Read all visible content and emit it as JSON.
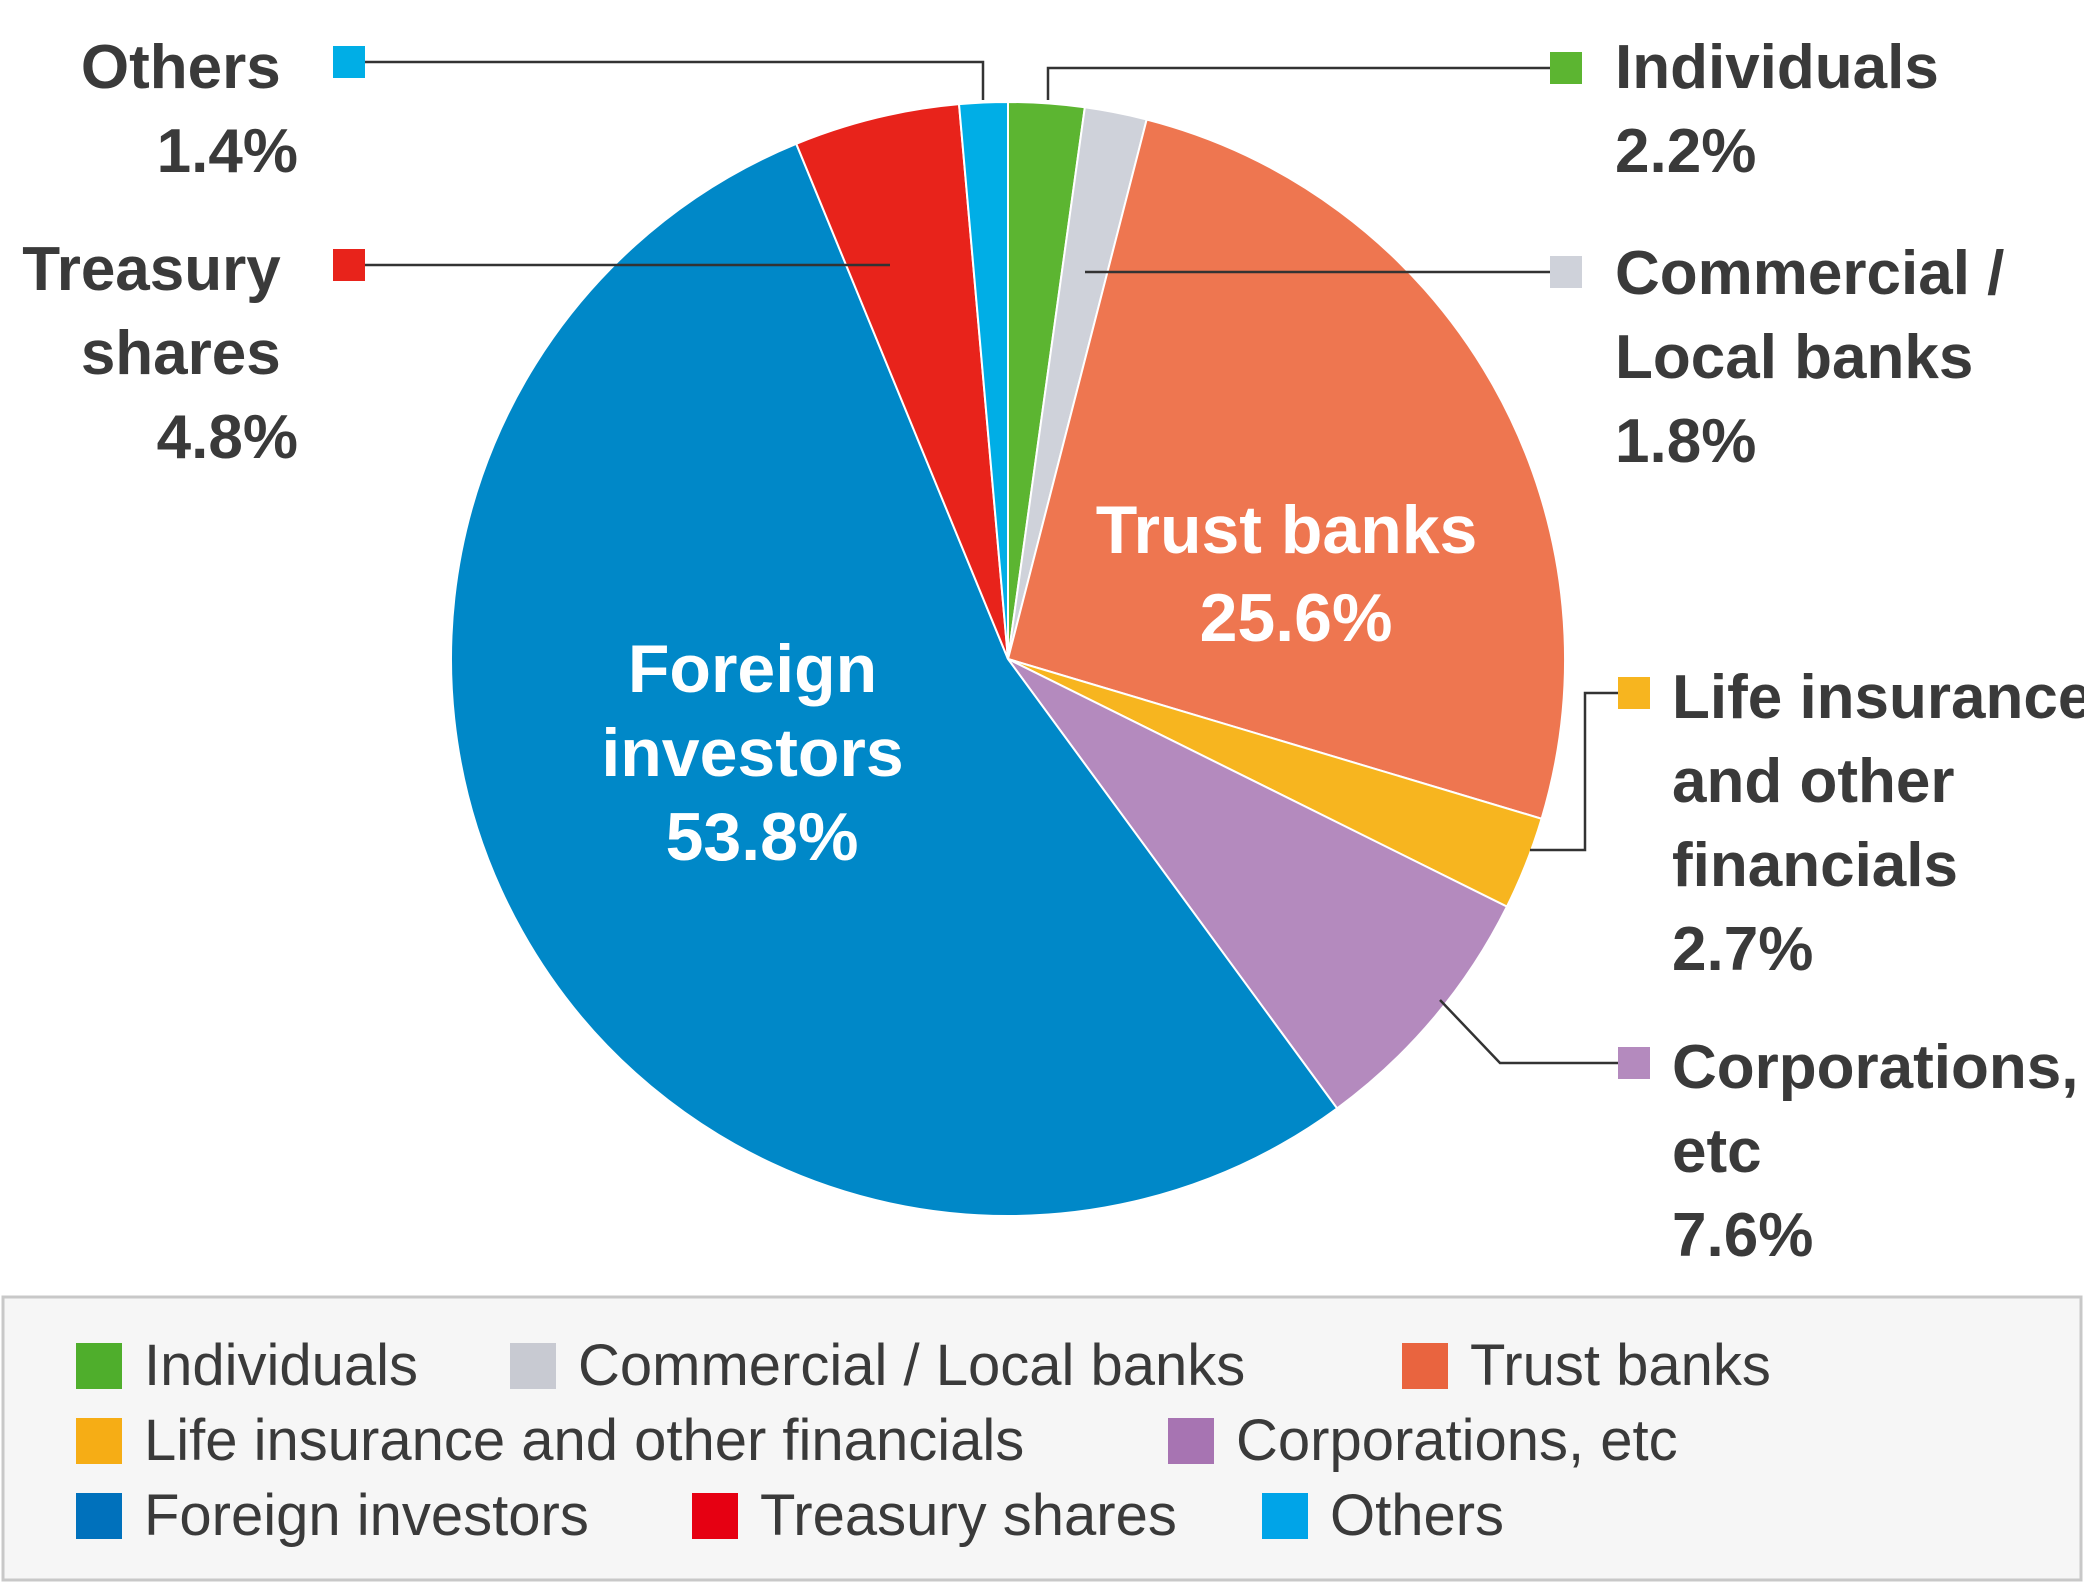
{
  "chart_data": {
    "type": "pie",
    "series": [
      {
        "slices": [
          {
            "label": "Individuals",
            "value": 2.2,
            "value_label": "2.2%",
            "color": "#5cb531"
          },
          {
            "label": "Commercial / Local banks",
            "value": 1.8,
            "value_label": "1.8%",
            "color": "#cfd2da"
          },
          {
            "label": "Trust banks",
            "value": 25.6,
            "value_label": "25.6%",
            "color": "#ee7650"
          },
          {
            "label": "Life insurance and other financials",
            "value": 2.7,
            "value_label": "2.7%",
            "color": "#f7b51f"
          },
          {
            "label": "Corporations, etc",
            "value": 7.6,
            "value_label": "7.6%",
            "color": "#b48abe"
          },
          {
            "label": "Foreign investors",
            "value": 53.8,
            "value_label": "53.8%",
            "color": "#0088c8"
          },
          {
            "label": "Treasury shares",
            "value": 4.8,
            "value_label": "4.8%",
            "color": "#e8231b"
          },
          {
            "label": "Others",
            "value": 1.4,
            "value_label": "1.4%",
            "color": "#00aee6"
          }
        ]
      }
    ],
    "start_angle": "top, clockwise",
    "legend": {
      "placement": "bottom",
      "entries": [
        {
          "label": "Individuals",
          "color": "#4fae2c"
        },
        {
          "label": "Commercial  / Local banks",
          "color": "#c8cad2"
        },
        {
          "label": "Trust banks",
          "color": "#e9643f"
        },
        {
          "label": "Life insurance and other financials",
          "color": "#f6ad15"
        },
        {
          "label": "Corporations, etc",
          "color": "#a774b2"
        },
        {
          "label": "Foreign investors",
          "color": "#0071bc"
        },
        {
          "label": "Treasury shares",
          "color": "#e60012"
        },
        {
          "label": "Others",
          "color": "#00a4e8"
        }
      ]
    }
  },
  "callouts": {
    "individuals": {
      "lines": [
        "Individuals",
        "2.2%"
      ]
    },
    "commercial": {
      "lines": [
        "Commercial /",
        "Local banks",
        "1.8%"
      ]
    },
    "life": {
      "lines": [
        "Life insurance",
        "and other",
        "financials",
        "2.7%"
      ]
    },
    "corporations": {
      "lines": [
        "Corporations,",
        "etc",
        "7.6%"
      ]
    },
    "others": {
      "lines": [
        "Others",
        "1.4%"
      ]
    },
    "treasury": {
      "lines": [
        "Treasury",
        "shares",
        "4.8%"
      ]
    },
    "trust": {
      "lines": [
        "Trust banks",
        "25.6%"
      ]
    },
    "foreign": {
      "lines": [
        "Foreign",
        "investors",
        "53.8%"
      ]
    }
  }
}
